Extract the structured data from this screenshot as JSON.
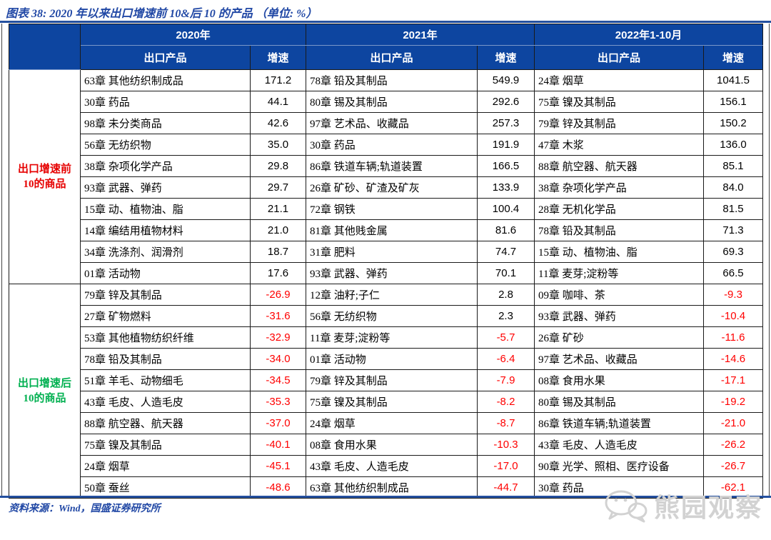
{
  "figure": {
    "title": "图表 38:  2020 年以来出口增速前 10&后 10 的产品 （单位: %）",
    "source": "资料来源：Wind，国盛证券研究所",
    "watermark": "熊园观察"
  },
  "colors": {
    "header_bg": "#0D45A0",
    "rule_blue": "#24509F",
    "title_blue": "#2148A5",
    "negative_red": "#FF0000",
    "top_label_red": "#E60000",
    "bottom_label_green": "#00B050",
    "watermark_gray": "#D2D2D2"
  },
  "table": {
    "groups": [
      {
        "label": "2020年"
      },
      {
        "label": "2021年"
      },
      {
        "label": "2022年1-10月"
      }
    ],
    "subheaders": {
      "product": "出口产品",
      "rate": "增速"
    },
    "sections": [
      {
        "label_lines": [
          "出口增速前",
          "10的商品"
        ],
        "label_color": "#E60000",
        "rows": [
          [
            "63章 其他纺织制成品",
            "171.2",
            "78章 铅及其制品",
            "549.9",
            "24章 烟草",
            "1041.5"
          ],
          [
            "30章 药品",
            "44.1",
            "80章 锡及其制品",
            "292.6",
            "75章 镍及其制品",
            "156.1"
          ],
          [
            "98章 未分类商品",
            "42.6",
            "97章 艺术品、收藏品",
            "257.3",
            "79章 锌及其制品",
            "150.2"
          ],
          [
            "56章 无纺织物",
            "35.0",
            "30章 药品",
            "191.9",
            "47章 木浆",
            "136.0"
          ],
          [
            "38章 杂项化学产品",
            "29.8",
            "86章 铁道车辆;轨道装置",
            "166.5",
            "88章 航空器、航天器",
            "85.1"
          ],
          [
            "93章 武器、弹药",
            "29.7",
            "26章 矿砂、矿渣及矿灰",
            "133.9",
            "38章 杂项化学产品",
            "84.0"
          ],
          [
            "15章 动、植物油、脂",
            "21.1",
            "72章 钢铁",
            "100.4",
            "28章 无机化学品",
            "81.5"
          ],
          [
            "14章 编结用植物材料",
            "21.0",
            "81章 其他贱金属",
            "81.6",
            "78章 铅及其制品",
            "71.3"
          ],
          [
            "34章 洗涤剂、润滑剂",
            "18.7",
            "31章 肥料",
            "74.7",
            "15章 动、植物油、脂",
            "69.3"
          ],
          [
            "01章 活动物",
            "17.6",
            "93章 武器、弹药",
            "70.1",
            "11章 麦芽;淀粉等",
            "66.5"
          ]
        ]
      },
      {
        "label_lines": [
          "出口增速后",
          "10的商品"
        ],
        "label_color": "#00B050",
        "rows": [
          [
            "79章 锌及其制品",
            "-26.9",
            "12章 油籽;子仁",
            "2.8",
            "09章 咖啡、茶",
            "-9.3"
          ],
          [
            "27章 矿物燃料",
            "-31.6",
            "56章 无纺织物",
            "2.3",
            "93章 武器、弹药",
            "-10.4"
          ],
          [
            "53章 其他植物纺织纤维",
            "-32.9",
            "11章 麦芽;淀粉等",
            "-5.7",
            "26章 矿砂",
            "-11.6"
          ],
          [
            "78章 铅及其制品",
            "-34.0",
            "01章 活动物",
            "-6.4",
            "97章 艺术品、收藏品",
            "-14.6"
          ],
          [
            "51章 羊毛、动物细毛",
            "-34.5",
            "79章 锌及其制品",
            "-7.9",
            "08章 食用水果",
            "-17.1"
          ],
          [
            "43章 毛皮、人造毛皮",
            "-35.3",
            "75章 镍及其制品",
            "-8.2",
            "80章 锡及其制品",
            "-19.2"
          ],
          [
            "88章 航空器、航天器",
            "-37.0",
            "24章 烟草",
            "-8.7",
            "86章 铁道车辆;轨道装置",
            "-21.0"
          ],
          [
            "75章 镍及其制品",
            "-40.1",
            "08章 食用水果",
            "-10.3",
            "43章 毛皮、人造毛皮",
            "-26.2"
          ],
          [
            "24章 烟草",
            "-45.1",
            "43章 毛皮、人造毛皮",
            "-17.0",
            "90章 光学、照相、医疗设备",
            "-26.7"
          ],
          [
            "50章 蚕丝",
            "-48.6",
            "63章 其他纺织制成品",
            "-44.7",
            "30章 药品",
            "-62.1"
          ]
        ]
      }
    ]
  }
}
